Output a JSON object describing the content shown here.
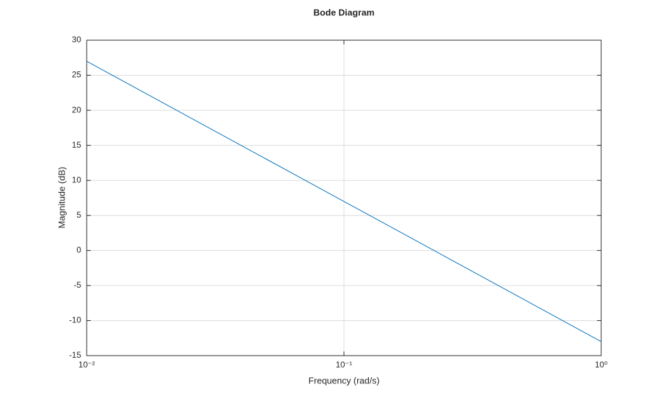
{
  "chart_data": {
    "type": "line",
    "title": "Bode Diagram",
    "x_label": "Frequency (rad/s)",
    "y_label": "Magnitude (dB)",
    "x": [
      0.01,
      1
    ],
    "series": [
      {
        "name": "Magnitude",
        "color": "#0072bd",
        "values": [
          27,
          -13
        ]
      }
    ],
    "xscale": "log",
    "xlim": [
      0.01,
      1
    ],
    "xticks": [
      {
        "value": 0.01,
        "label": "10⁻²"
      },
      {
        "value": 0.1,
        "label": "10⁻¹"
      },
      {
        "value": 1,
        "label": "10⁰"
      }
    ],
    "ylim": [
      -15,
      30
    ],
    "yticks": [
      -15,
      -10,
      -5,
      0,
      5,
      10,
      15,
      20,
      25,
      30
    ],
    "grid": true
  }
}
